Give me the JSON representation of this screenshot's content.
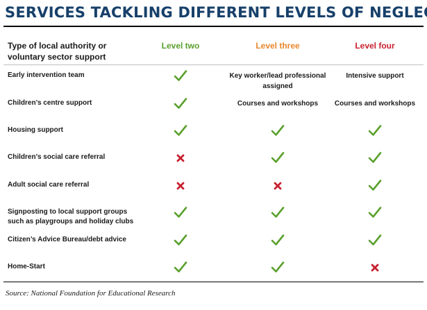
{
  "title": "SERVICES TACKLING DIFFERENT LEVELS OF NEGLECT",
  "columns": {
    "first": "Type of local authority or voluntary sector support",
    "levels": [
      {
        "label": "Level two",
        "color": "#5aa02c"
      },
      {
        "label": "Level three",
        "color": "#e8862b"
      },
      {
        "label": "Level four",
        "color": "#c8202f"
      }
    ]
  },
  "icons": {
    "tick": {
      "name": "check-icon",
      "color": "#5aa02c"
    },
    "cross": {
      "name": "cross-icon",
      "color": "#c8202f"
    }
  },
  "rows": [
    {
      "label": "Early intervention team",
      "cells": [
        {
          "type": "tick"
        },
        {
          "type": "text",
          "text": "Key worker/lead professional assigned"
        },
        {
          "type": "text",
          "text": "Intensive support"
        }
      ]
    },
    {
      "label": "Children’s centre support",
      "cells": [
        {
          "type": "tick"
        },
        {
          "type": "text",
          "text": "Courses and workshops"
        },
        {
          "type": "text",
          "text": "Courses and workshops"
        }
      ]
    },
    {
      "label": "Housing support",
      "cells": [
        {
          "type": "tick"
        },
        {
          "type": "tick"
        },
        {
          "type": "tick"
        }
      ]
    },
    {
      "label": "Children’s social care referral",
      "cells": [
        {
          "type": "cross"
        },
        {
          "type": "tick"
        },
        {
          "type": "tick"
        }
      ]
    },
    {
      "label": "Adult social care referral",
      "cells": [
        {
          "type": "cross"
        },
        {
          "type": "cross"
        },
        {
          "type": "tick"
        }
      ]
    },
    {
      "label": "Signposting to local support groups such as playgroups and holiday clubs",
      "cells": [
        {
          "type": "tick"
        },
        {
          "type": "tick"
        },
        {
          "type": "tick"
        }
      ]
    },
    {
      "label": "Citizen’s Advice Bureau/debt advice",
      "cells": [
        {
          "type": "tick"
        },
        {
          "type": "tick"
        },
        {
          "type": "tick"
        }
      ]
    },
    {
      "label": "Home-Start",
      "cells": [
        {
          "type": "tick"
        },
        {
          "type": "tick"
        },
        {
          "type": "cross"
        }
      ]
    }
  ],
  "source": "Source: National Foundation for Educational Research"
}
